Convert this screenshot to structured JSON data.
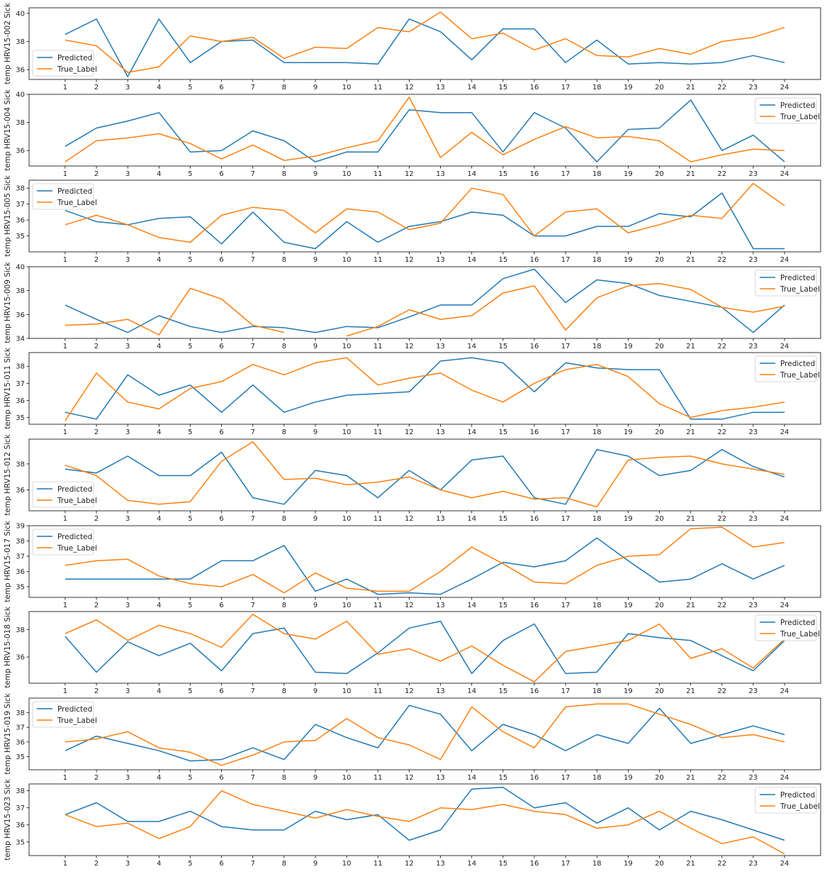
{
  "colors": {
    "predicted": "#1f77b4",
    "true_label": "#ff7f0e",
    "axis": "#000000",
    "background": "#ffffff"
  },
  "chart_data": [
    {
      "type": "line",
      "ylabel": "temp HRV15-002 Sick",
      "x": [
        1,
        2,
        3,
        4,
        5,
        6,
        7,
        8,
        9,
        10,
        11,
        12,
        13,
        14,
        15,
        16,
        17,
        18,
        19,
        20,
        21,
        22,
        23,
        24
      ],
      "ylim": [
        35.3,
        40.4
      ],
      "yticks": [
        36,
        38,
        40
      ],
      "legend": "lower-left",
      "series": [
        {
          "name": "Predicted",
          "values": [
            38.5,
            39.6,
            35.5,
            39.6,
            36.5,
            38.0,
            38.1,
            36.5,
            36.5,
            36.5,
            36.4,
            39.6,
            38.7,
            36.7,
            38.9,
            38.9,
            36.5,
            38.1,
            36.4,
            36.5,
            36.4,
            36.5,
            37.0,
            36.5
          ]
        },
        {
          "name": "True_Label",
          "values": [
            38.1,
            37.7,
            35.8,
            36.2,
            38.4,
            38.0,
            38.3,
            36.8,
            37.6,
            37.5,
            39.0,
            38.7,
            40.1,
            38.2,
            38.6,
            37.4,
            38.2,
            37.0,
            36.9,
            37.5,
            37.1,
            38.0,
            38.3,
            39.0
          ]
        }
      ]
    },
    {
      "type": "line",
      "ylabel": "temp HRV15-004 Sick",
      "x": [
        1,
        2,
        3,
        4,
        5,
        6,
        7,
        8,
        9,
        10,
        11,
        12,
        13,
        14,
        15,
        16,
        17,
        18,
        19,
        20,
        21,
        22,
        23,
        24
      ],
      "ylim": [
        34.9,
        40.0
      ],
      "yticks": [
        36,
        38,
        40
      ],
      "legend": "top-right",
      "series": [
        {
          "name": "Predicted",
          "values": [
            36.3,
            37.6,
            38.1,
            38.7,
            35.9,
            36.0,
            37.4,
            36.7,
            35.2,
            35.9,
            35.9,
            38.9,
            38.7,
            38.7,
            35.9,
            38.7,
            37.6,
            35.2,
            37.5,
            37.6,
            39.6,
            36.0,
            37.1,
            35.2
          ]
        },
        {
          "name": "True_Label",
          "values": [
            35.2,
            36.7,
            36.9,
            37.2,
            36.5,
            35.4,
            36.4,
            35.3,
            35.6,
            36.2,
            36.7,
            39.8,
            35.5,
            37.3,
            35.7,
            36.8,
            37.7,
            36.9,
            37.0,
            36.7,
            35.2,
            35.7,
            36.1,
            36.0
          ]
        }
      ]
    },
    {
      "type": "line",
      "ylabel": "temp HRV15-005 Sick",
      "x": [
        1,
        2,
        3,
        4,
        5,
        6,
        7,
        8,
        9,
        10,
        11,
        12,
        13,
        14,
        15,
        16,
        17,
        18,
        19,
        20,
        21,
        22,
        23,
        24
      ],
      "ylim": [
        34.0,
        38.5
      ],
      "yticks": [
        35,
        36,
        37,
        38
      ],
      "legend": "top-left",
      "series": [
        {
          "name": "Predicted",
          "values": [
            36.6,
            35.9,
            35.7,
            36.1,
            36.2,
            34.5,
            36.5,
            34.6,
            34.2,
            35.9,
            34.6,
            35.6,
            35.9,
            36.5,
            36.3,
            35.0,
            35.0,
            35.6,
            35.6,
            36.4,
            36.2,
            37.7,
            34.2,
            34.2
          ]
        },
        {
          "name": "True_Label",
          "values": [
            35.7,
            36.3,
            35.7,
            34.9,
            34.6,
            36.3,
            36.8,
            36.6,
            35.2,
            36.7,
            36.5,
            35.4,
            35.8,
            38.0,
            37.6,
            35.0,
            36.5,
            36.7,
            35.2,
            35.7,
            36.3,
            36.1,
            38.3,
            36.9
          ]
        }
      ]
    },
    {
      "type": "line",
      "ylabel": "temp HRV15-009 Sick",
      "x": [
        1,
        2,
        3,
        4,
        5,
        6,
        7,
        8,
        9,
        10,
        11,
        12,
        13,
        14,
        15,
        16,
        17,
        18,
        19,
        20,
        21,
        22,
        23,
        24
      ],
      "ylim": [
        34.0,
        40.0
      ],
      "yticks": [
        34,
        36,
        38,
        40
      ],
      "legend": "top-right",
      "series": [
        {
          "name": "Predicted",
          "values": [
            36.8,
            35.6,
            34.5,
            35.9,
            35.0,
            34.5,
            35.0,
            34.9,
            34.5,
            35.0,
            34.9,
            35.8,
            36.8,
            36.8,
            39.0,
            39.8,
            37.0,
            38.9,
            38.6,
            37.6,
            37.1,
            36.6,
            34.5,
            36.8
          ]
        },
        {
          "name": "True_Label",
          "values": [
            35.1,
            35.2,
            35.6,
            34.3,
            38.2,
            37.3,
            35.1,
            34.5,
            null,
            34.2,
            35.0,
            36.4,
            35.6,
            35.9,
            37.8,
            38.4,
            34.7,
            37.4,
            38.4,
            38.6,
            38.1,
            36.6,
            36.2,
            36.7
          ]
        }
      ]
    },
    {
      "type": "line",
      "ylabel": "temp HRV15-011 Sick",
      "x": [
        1,
        2,
        3,
        4,
        5,
        6,
        7,
        8,
        9,
        10,
        11,
        12,
        13,
        14,
        15,
        16,
        17,
        18,
        19,
        20,
        21,
        22,
        23,
        24
      ],
      "ylim": [
        34.6,
        38.8
      ],
      "yticks": [
        35,
        36,
        37,
        38
      ],
      "legend": "top-right",
      "series": [
        {
          "name": "Predicted",
          "values": [
            35.3,
            34.9,
            37.5,
            36.3,
            36.9,
            35.3,
            36.9,
            35.3,
            35.9,
            36.3,
            36.4,
            36.5,
            38.3,
            38.5,
            38.2,
            36.5,
            38.2,
            37.9,
            37.8,
            37.8,
            34.9,
            34.9,
            35.3,
            35.3
          ]
        },
        {
          "name": "True_Label",
          "values": [
            34.8,
            37.6,
            35.9,
            35.5,
            36.7,
            37.1,
            38.1,
            37.5,
            38.2,
            38.5,
            36.9,
            37.3,
            37.6,
            36.6,
            35.9,
            37.0,
            37.8,
            38.1,
            37.4,
            35.8,
            35.0,
            35.4,
            35.6,
            35.9
          ]
        }
      ]
    },
    {
      "type": "line",
      "ylabel": "temp HRV15-012 Sick",
      "x": [
        1,
        2,
        3,
        4,
        5,
        6,
        7,
        8,
        9,
        10,
        11,
        12,
        13,
        14,
        15,
        16,
        17,
        18,
        19,
        20,
        21,
        22,
        23,
        24
      ],
      "ylim": [
        34.4,
        39.9
      ],
      "yticks": [
        36,
        38
      ],
      "legend": "lower-left",
      "series": [
        {
          "name": "Predicted",
          "values": [
            37.6,
            37.3,
            38.6,
            37.1,
            37.1,
            38.9,
            35.4,
            34.9,
            37.5,
            37.1,
            35.4,
            37.5,
            36.0,
            38.3,
            38.6,
            35.4,
            34.9,
            39.1,
            38.6,
            37.1,
            37.5,
            39.1,
            37.8,
            37.0
          ]
        },
        {
          "name": "True_Label",
          "values": [
            37.9,
            37.1,
            35.2,
            34.9,
            35.1,
            38.2,
            39.7,
            36.8,
            36.9,
            36.4,
            36.6,
            37.0,
            36.0,
            35.4,
            35.9,
            35.3,
            35.4,
            34.7,
            38.3,
            38.5,
            38.6,
            38.0,
            37.6,
            37.2
          ]
        }
      ]
    },
    {
      "type": "line",
      "ylabel": "temp HRV15-017 Sick",
      "x": [
        1,
        2,
        3,
        4,
        5,
        6,
        7,
        8,
        9,
        10,
        11,
        12,
        13,
        14,
        15,
        16,
        17,
        18,
        19,
        20,
        21,
        22,
        23,
        24
      ],
      "ylim": [
        34.3,
        39.0
      ],
      "yticks": [
        35,
        36,
        37,
        38,
        39
      ],
      "legend": "top-left",
      "series": [
        {
          "name": "Predicted",
          "values": [
            35.5,
            35.5,
            35.5,
            35.5,
            35.5,
            36.7,
            36.7,
            37.7,
            34.7,
            35.5,
            34.5,
            34.6,
            34.5,
            35.5,
            36.6,
            36.3,
            36.7,
            38.2,
            36.7,
            35.3,
            35.5,
            36.5,
            35.5,
            36.4
          ]
        },
        {
          "name": "True_Label",
          "values": [
            36.4,
            36.7,
            36.8,
            35.7,
            35.2,
            35.0,
            35.8,
            34.6,
            35.9,
            34.9,
            34.7,
            34.7,
            36.0,
            37.6,
            36.5,
            35.3,
            35.2,
            36.4,
            37.0,
            37.1,
            38.8,
            38.9,
            37.6,
            37.9
          ]
        }
      ]
    },
    {
      "type": "line",
      "ylabel": "temp HRV15-018 Sick",
      "x": [
        1,
        2,
        3,
        4,
        5,
        6,
        7,
        8,
        9,
        10,
        11,
        12,
        13,
        14,
        15,
        16,
        17,
        18,
        19,
        20,
        21,
        22,
        23,
        24
      ],
      "ylim": [
        34.1,
        39.3
      ],
      "yticks": [
        36,
        38
      ],
      "legend": "top-right",
      "series": [
        {
          "name": "Predicted",
          "values": [
            37.5,
            34.9,
            37.1,
            36.1,
            37.0,
            35.0,
            37.7,
            38.1,
            34.9,
            34.8,
            36.3,
            38.1,
            38.6,
            34.8,
            37.2,
            38.4,
            34.8,
            34.9,
            37.7,
            37.4,
            37.2,
            36.1,
            35.0,
            37.2
          ]
        },
        {
          "name": "True_Label",
          "values": [
            37.7,
            38.7,
            37.2,
            38.3,
            37.7,
            36.7,
            39.1,
            37.7,
            37.3,
            38.6,
            36.2,
            36.6,
            35.7,
            36.8,
            35.4,
            34.2,
            36.4,
            36.8,
            37.2,
            38.4,
            35.9,
            36.6,
            35.2,
            37.3
          ]
        }
      ]
    },
    {
      "type": "line",
      "ylabel": "temp HRV15-019 Sick",
      "x": [
        1,
        2,
        3,
        4,
        5,
        6,
        7,
        8,
        9,
        10,
        11,
        12,
        13,
        14,
        15,
        16,
        17,
        18,
        19,
        20,
        21,
        22,
        23,
        24
      ],
      "ylim": [
        34.1,
        39.0
      ],
      "yticks": [
        35,
        36,
        37,
        38
      ],
      "legend": "top-left",
      "series": [
        {
          "name": "Predicted",
          "values": [
            35.4,
            36.4,
            35.9,
            35.4,
            34.7,
            34.8,
            35.6,
            34.8,
            37.2,
            36.3,
            35.6,
            38.5,
            37.9,
            35.4,
            37.2,
            36.5,
            35.4,
            36.5,
            35.9,
            38.3,
            35.9,
            36.5,
            37.1,
            36.5
          ]
        },
        {
          "name": "True_Label",
          "values": [
            36.0,
            36.2,
            36.7,
            35.6,
            35.3,
            34.4,
            35.1,
            36.0,
            36.1,
            37.6,
            36.3,
            35.8,
            34.8,
            38.4,
            36.7,
            35.6,
            38.4,
            38.6,
            38.6,
            37.9,
            37.2,
            36.3,
            36.5,
            36.0
          ]
        }
      ]
    },
    {
      "type": "line",
      "ylabel": "temp HRV15-023 Sick",
      "x": [
        1,
        2,
        3,
        4,
        5,
        6,
        7,
        8,
        9,
        10,
        11,
        12,
        13,
        14,
        15,
        16,
        17,
        18,
        19,
        20,
        21,
        22,
        23,
        24
      ],
      "ylim": [
        34.2,
        38.4
      ],
      "yticks": [
        35,
        36,
        37,
        38
      ],
      "legend": "top-right",
      "series": [
        {
          "name": "Predicted",
          "values": [
            36.6,
            37.3,
            36.2,
            36.2,
            36.8,
            35.9,
            35.7,
            35.7,
            36.8,
            36.3,
            36.6,
            35.1,
            35.7,
            38.1,
            38.2,
            37.0,
            37.3,
            36.1,
            37.0,
            35.7,
            36.8,
            36.3,
            35.7,
            35.1
          ]
        },
        {
          "name": "True_Label",
          "values": [
            36.6,
            35.9,
            36.1,
            35.2,
            35.9,
            38.0,
            37.2,
            36.8,
            36.4,
            36.9,
            36.5,
            36.2,
            37.0,
            36.9,
            37.2,
            36.8,
            36.6,
            35.8,
            36.0,
            36.8,
            35.8,
            34.9,
            35.3,
            34.3
          ]
        }
      ]
    }
  ]
}
